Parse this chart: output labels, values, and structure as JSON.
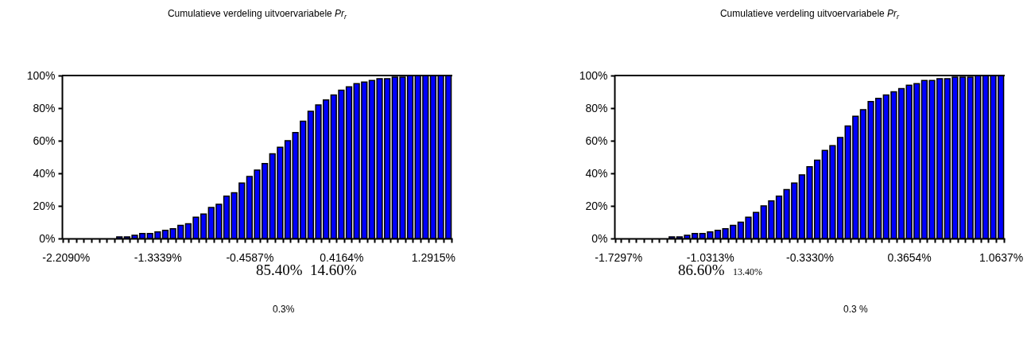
{
  "chart_data": [
    {
      "type": "bar",
      "title": "Cumulatieve verdeling uitvoervariabele Pr$_{r}$",
      "categories": [
        "-2.2090%",
        null,
        null,
        null,
        null,
        null,
        null,
        null,
        null,
        null,
        null,
        null,
        "-1.3339%",
        null,
        null,
        null,
        null,
        null,
        null,
        null,
        null,
        null,
        null,
        null,
        "-0.4587%",
        null,
        null,
        null,
        null,
        null,
        null,
        null,
        null,
        null,
        null,
        null,
        "0.4164%",
        null,
        null,
        null,
        null,
        null,
        null,
        null,
        null,
        null,
        null,
        null,
        "1.2915%",
        null,
        null
      ],
      "values": [
        0,
        0,
        0,
        0,
        0,
        0,
        0,
        1,
        1,
        2,
        3,
        3,
        4,
        5,
        6,
        8,
        9,
        13,
        15,
        19,
        21,
        26,
        28,
        34,
        38,
        42,
        46,
        52,
        56,
        60,
        65,
        72,
        78,
        82,
        85,
        88,
        91,
        93,
        95,
        96,
        97,
        98,
        98,
        99,
        99,
        100,
        100,
        100,
        100,
        100,
        100
      ],
      "color": "#0000ff",
      "ylim": [
        0,
        100
      ],
      "yticks": [
        {
          "value": 0,
          "label": "0%"
        },
        {
          "value": 20,
          "label": "20%"
        },
        {
          "value": 40,
          "label": "40%"
        },
        {
          "value": 60,
          "label": "60%"
        },
        {
          "value": 80,
          "label": "80%"
        },
        {
          "value": 100,
          "label": "100%"
        }
      ],
      "grid": false,
      "ref_lines": [
        {
          "axis": "y",
          "value": 100,
          "color": "#000000"
        }
      ],
      "annotations": [
        "85.40%",
        "14.60%",
        "0.3%"
      ]
    },
    {
      "type": "bar",
      "title": "Cumulatieve verdeling uitvoervariabele Pr$_{r}$",
      "categories": [
        "-1.7297%",
        null,
        null,
        null,
        null,
        null,
        null,
        null,
        null,
        null,
        null,
        null,
        "-1.0313%",
        null,
        null,
        null,
        null,
        null,
        null,
        null,
        null,
        null,
        null,
        null,
        null,
        "-0.3330%",
        null,
        null,
        null,
        null,
        null,
        null,
        null,
        null,
        null,
        null,
        null,
        null,
        "0.3654%",
        null,
        null,
        null,
        null,
        null,
        null,
        null,
        null,
        null,
        null,
        null,
        "1.0637%"
      ],
      "values": [
        0,
        0,
        0,
        0,
        0,
        0,
        0,
        1,
        1,
        2,
        3,
        3,
        4,
        5,
        6,
        8,
        10,
        13,
        16,
        20,
        23,
        26,
        30,
        34,
        39,
        44,
        48,
        54,
        57,
        62,
        69,
        75,
        79,
        84,
        86,
        88,
        90,
        92,
        94,
        95,
        97,
        97,
        98,
        98,
        99,
        99,
        99,
        100,
        100,
        100,
        100
      ],
      "color": "#0000ff",
      "ylim": [
        0,
        100
      ],
      "yticks": [
        {
          "value": 0,
          "label": "0%"
        },
        {
          "value": 20,
          "label": "20%"
        },
        {
          "value": 40,
          "label": "40%"
        },
        {
          "value": 60,
          "label": "60%"
        },
        {
          "value": 80,
          "label": "80%"
        },
        {
          "value": 100,
          "label": "100%"
        }
      ],
      "grid": false,
      "ref_lines": [
        {
          "axis": "y",
          "value": 100,
          "color": "#000000"
        }
      ],
      "annotations": [
        "86.60%",
        "13.40%",
        "0.3 %"
      ]
    }
  ]
}
